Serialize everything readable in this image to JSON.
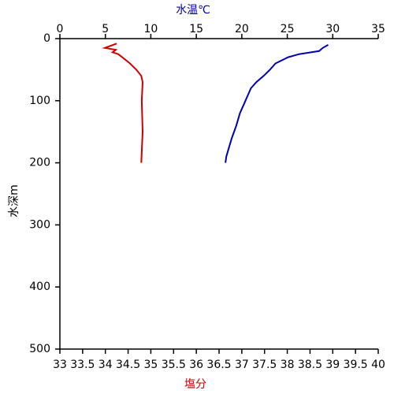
{
  "chart_data": {
    "type": "profile",
    "top_axis_label": "水温℃",
    "bottom_axis_label": "塩分",
    "y_axis_label": "水深m",
    "top_axis_color": "#0000aa",
    "bottom_axis_color": "#cc0000",
    "x2lim": [
      0,
      35
    ],
    "x2ticks": [
      0,
      5,
      10,
      15,
      20,
      25,
      30,
      35
    ],
    "xlim": [
      33,
      40
    ],
    "xticks": [
      33,
      33.5,
      34,
      34.5,
      35,
      35.5,
      36,
      36.5,
      37,
      37.5,
      38,
      38.5,
      39,
      39.5,
      40
    ],
    "ylim": [
      0,
      500
    ],
    "yticks": [
      0,
      100,
      200,
      300,
      400,
      500
    ],
    "y_inverted": true,
    "series": [
      {
        "color": "#0000aa",
        "axis": "x2",
        "values": [
          29.5,
          28.9,
          28.5,
          26.3,
          25.1,
          23.7,
          23.1,
          22.4,
          21.6,
          21.0,
          20.4,
          19.8,
          19.4,
          18.9,
          18.5,
          18.3,
          18.2
        ],
        "depth": [
          10,
          15,
          20,
          25,
          30,
          40,
          50,
          60,
          70,
          80,
          100,
          120,
          140,
          160,
          180,
          190,
          200
        ]
      },
      {
        "color": "#cc0000",
        "axis": "x",
        "values": [
          34.25,
          33.99,
          34.23,
          34.16,
          34.28,
          34.37,
          34.54,
          34.68,
          34.79,
          34.82,
          34.8,
          34.82,
          34.79
        ],
        "depth": [
          8,
          15,
          18,
          22,
          25,
          30,
          40,
          50,
          60,
          70,
          100,
          150,
          200
        ]
      }
    ]
  }
}
